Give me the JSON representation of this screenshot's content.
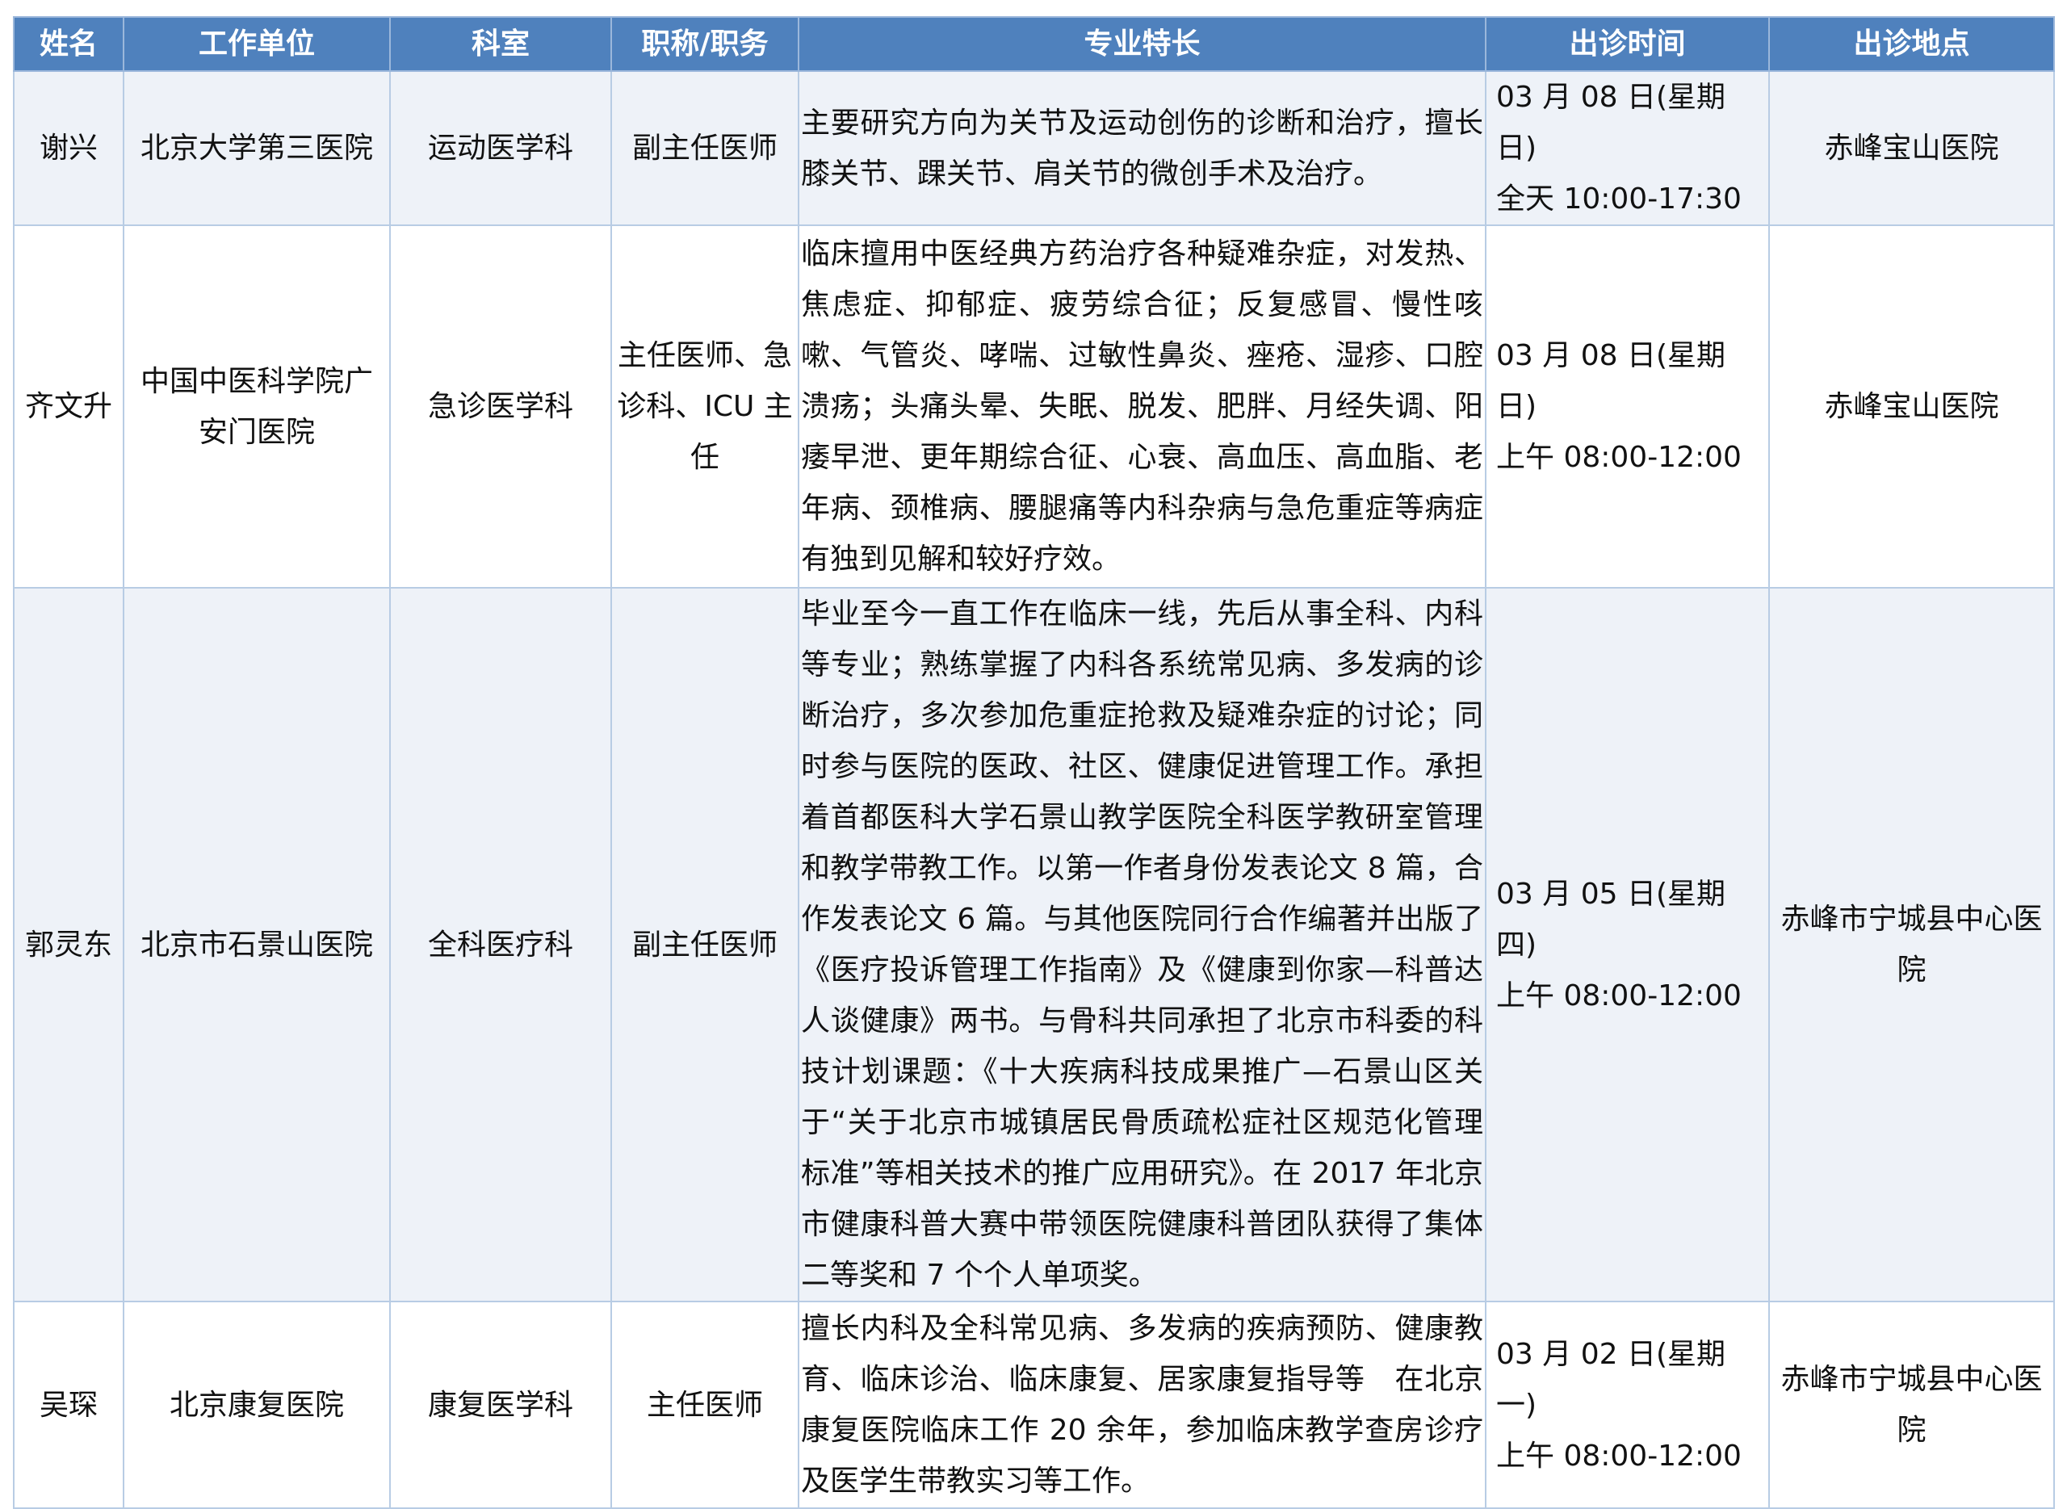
{
  "header_color": "#4f81bd",
  "columns": [
    "姓名",
    "工作单位",
    "科室",
    "职称/职务",
    "专业特长",
    "出诊时间",
    "出诊地点"
  ],
  "rows": [
    {
      "name": "谢兴",
      "unit": "北京大学第三医院",
      "dept": "运动医学科",
      "title": "副主任医师",
      "spec": "主要研究方向为关节及运动创伤的诊断和治疗，擅长膝关节、踝关节、肩关节的微创手术及治疗。",
      "date": "03 月 08 日(星期日)",
      "hours": "全天 10:00-17:30",
      "place": "赤峰宝山医院"
    },
    {
      "name": "齐文升",
      "unit": "中国中医科学院广安门医院",
      "dept": "急诊医学科",
      "title": "主任医师、急诊科、ICU 主任",
      "spec": "临床擅用中医经典方药治疗各种疑难杂症，对发热、焦虑症、抑郁症、疲劳综合征；反复感冒、慢性咳嗽、气管炎、哮喘、过敏性鼻炎、痤疮、湿疹、口腔溃疡；头痛头晕、失眠、脱发、肥胖、月经失调、阳痿早泄、更年期综合征、心衰、高血压、高血脂、老年病、颈椎病、腰腿痛等内科杂病与急危重症等病症有独到见解和较好疗效。",
      "date": "03 月 08 日(星期日)",
      "hours": "上午 08:00-12:00",
      "place": "赤峰宝山医院"
    },
    {
      "name": "郭灵东",
      "unit": "北京市石景山医院",
      "dept": "全科医疗科",
      "title": "副主任医师",
      "spec": "毕业至今一直工作在临床一线，先后从事全科、内科等专业；熟练掌握了内科各系统常见病、多发病的诊断治疗，多次参加危重症抢救及疑难杂症的讨论；同时参与医院的医政、社区、健康促进管理工作。承担着首都医科大学石景山教学医院全科医学教研室管理和教学带教工作。以第一作者身份发表论文 8 篇，合作发表论文 6 篇。与其他医院同行合作编著并出版了《医疗投诉管理工作指南》及《健康到你家—科普达人谈健康》两书。与骨科共同承担了北京市科委的科技计划课题：《十大疾病科技成果推广—石景山区关于“关于北京市城镇居民骨质疏松症社区规范化管理标准”等相关技术的推广应用研究》。在 2017 年北京市健康科普大赛中带领医院健康科普团队获得了集体二等奖和 7 个个人单项奖。",
      "date": "03 月 05 日(星期四)",
      "hours": "上午 08:00-12:00",
      "place": "赤峰市宁城县中心医院"
    },
    {
      "name": "吴琛",
      "unit": "北京康复医院",
      "dept": "康复医学科",
      "title": "主任医师",
      "spec": "擅长内科及全科常见病、多发病的疾病预防、健康教育、临床诊治、临床康复、居家康复指导等　在北京康复医院临床工作 20 余年，参加临床教学查房诊疗及医学生带教实习等工作。",
      "date": "03 月 02 日(星期一)",
      "hours": "上午 08:00-12:00",
      "place": "赤峰市宁城县中心医院"
    }
  ]
}
